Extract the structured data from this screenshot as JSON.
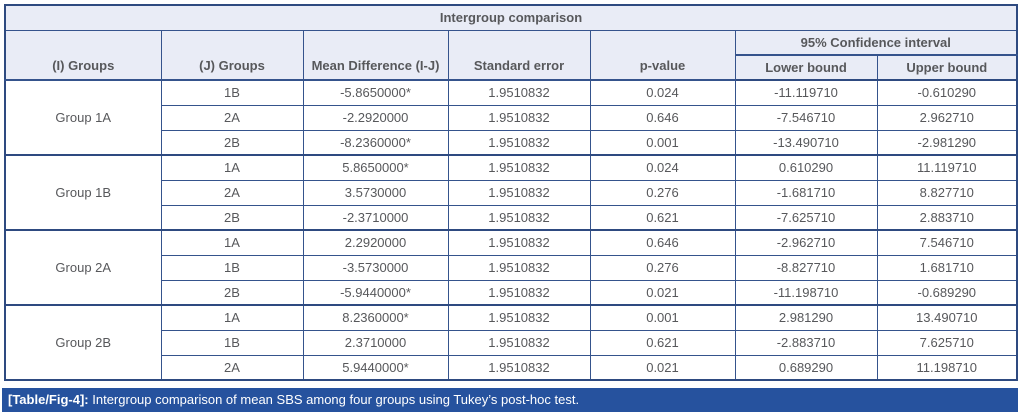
{
  "table": {
    "title": "Intergroup comparison",
    "headers": {
      "i_groups": "(I) Groups",
      "j_groups": "(J) Groups",
      "mean_difference": "Mean Difference (I-J)",
      "standard_error": "Standard error",
      "p_value": "p-value",
      "confidence_interval": "95% Confidence interval",
      "lower_bound": "Lower bound",
      "upper_bound": "Upper bound"
    },
    "groups": [
      {
        "name": "Group 1A",
        "rows": [
          [
            "1B",
            "-5.8650000*",
            "1.9510832",
            "0.024",
            "-11.119710",
            "-0.610290"
          ],
          [
            "2A",
            "-2.2920000",
            "1.9510832",
            "0.646",
            "-7.546710",
            "2.962710"
          ],
          [
            "2B",
            "-8.2360000*",
            "1.9510832",
            "0.001",
            "-13.490710",
            "-2.981290"
          ]
        ]
      },
      {
        "name": "Group 1B",
        "rows": [
          [
            "1A",
            "5.8650000*",
            "1.9510832",
            "0.024",
            "0.610290",
            "11.119710"
          ],
          [
            "2A",
            "3.5730000",
            "1.9510832",
            "0.276",
            "-1.681710",
            "8.827710"
          ],
          [
            "2B",
            "-2.3710000",
            "1.9510832",
            "0.621",
            "-7.625710",
            "2.883710"
          ]
        ]
      },
      {
        "name": "Group 2A",
        "rows": [
          [
            "1A",
            "2.2920000",
            "1.9510832",
            "0.646",
            "-2.962710",
            "7.546710"
          ],
          [
            "1B",
            "-3.5730000",
            "1.9510832",
            "0.276",
            "-8.827710",
            "1.681710"
          ],
          [
            "2B",
            "-5.9440000*",
            "1.9510832",
            "0.021",
            "-11.198710",
            "-0.689290"
          ]
        ]
      },
      {
        "name": "Group 2B",
        "rows": [
          [
            "1A",
            "8.2360000*",
            "1.9510832",
            "0.001",
            "2.981290",
            "13.490710"
          ],
          [
            "1B",
            "2.3710000",
            "1.9510832",
            "0.621",
            "-2.883710",
            "7.625710"
          ],
          [
            "2A",
            "5.9440000*",
            "1.9510832",
            "0.021",
            "0.689290",
            "11.198710"
          ]
        ]
      }
    ]
  },
  "caption": {
    "label": "[Table/Fig-4]:",
    "text": " Intergroup comparison of mean SBS among four groups using Tukey’s post-hoc test."
  },
  "colors": {
    "border": "#2e4a80",
    "header_bg": "#e9ecf6",
    "header_text": "#2b4fa2",
    "body_text": "#57585b",
    "caption_bg": "#26529e",
    "caption_text": "#ffffff"
  }
}
